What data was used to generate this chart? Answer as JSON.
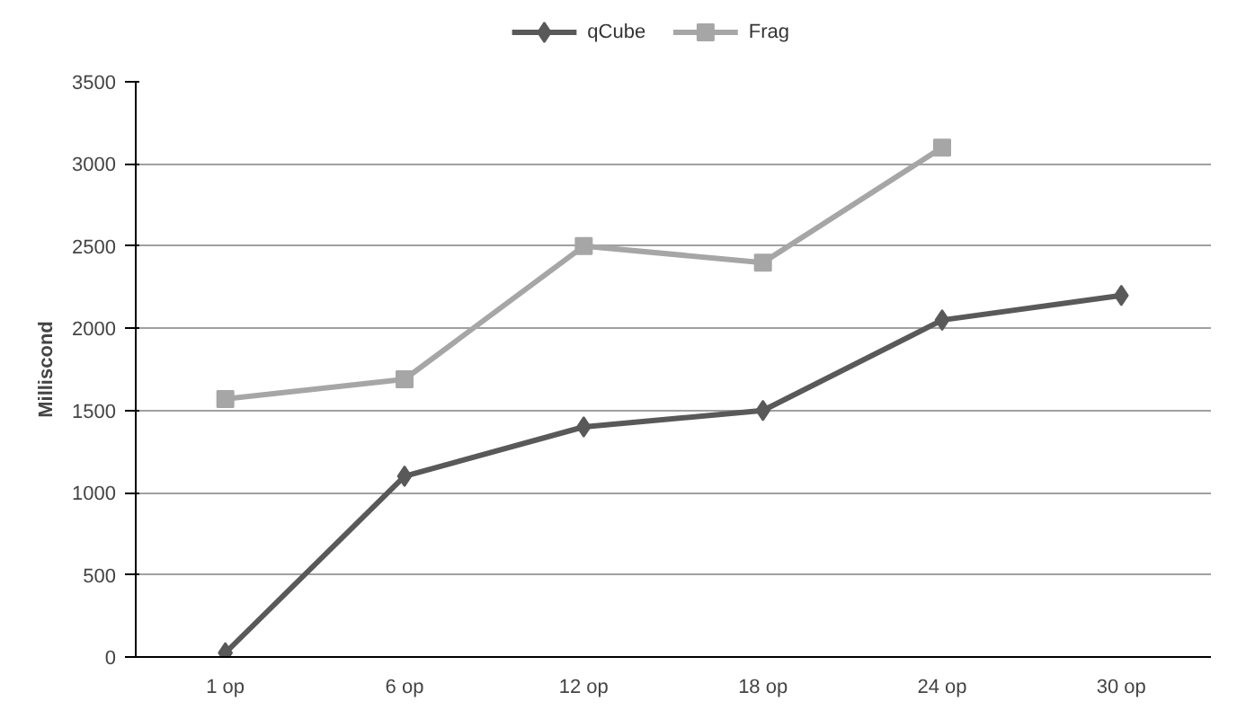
{
  "chart_data": {
    "type": "line",
    "ylabel": "Milliscond",
    "categories": [
      "1 op",
      "6 op",
      "12 op",
      "18 op",
      "24 op",
      "30 op"
    ],
    "series": [
      {
        "name": "qCube",
        "color": "#595959",
        "marker": "diamond",
        "values": [
          25,
          1100,
          1400,
          1500,
          2050,
          2200
        ]
      },
      {
        "name": "Frag",
        "color": "#a6a6a6",
        "marker": "square",
        "values": [
          1570,
          1690,
          2500,
          2400,
          3100,
          null
        ]
      }
    ],
    "ylim": [
      0,
      3500
    ],
    "yticks": [
      0,
      500,
      1000,
      1500,
      2000,
      2500,
      3000,
      3500
    ],
    "grid": "y",
    "legend": "top",
    "line_style": "solid"
  }
}
